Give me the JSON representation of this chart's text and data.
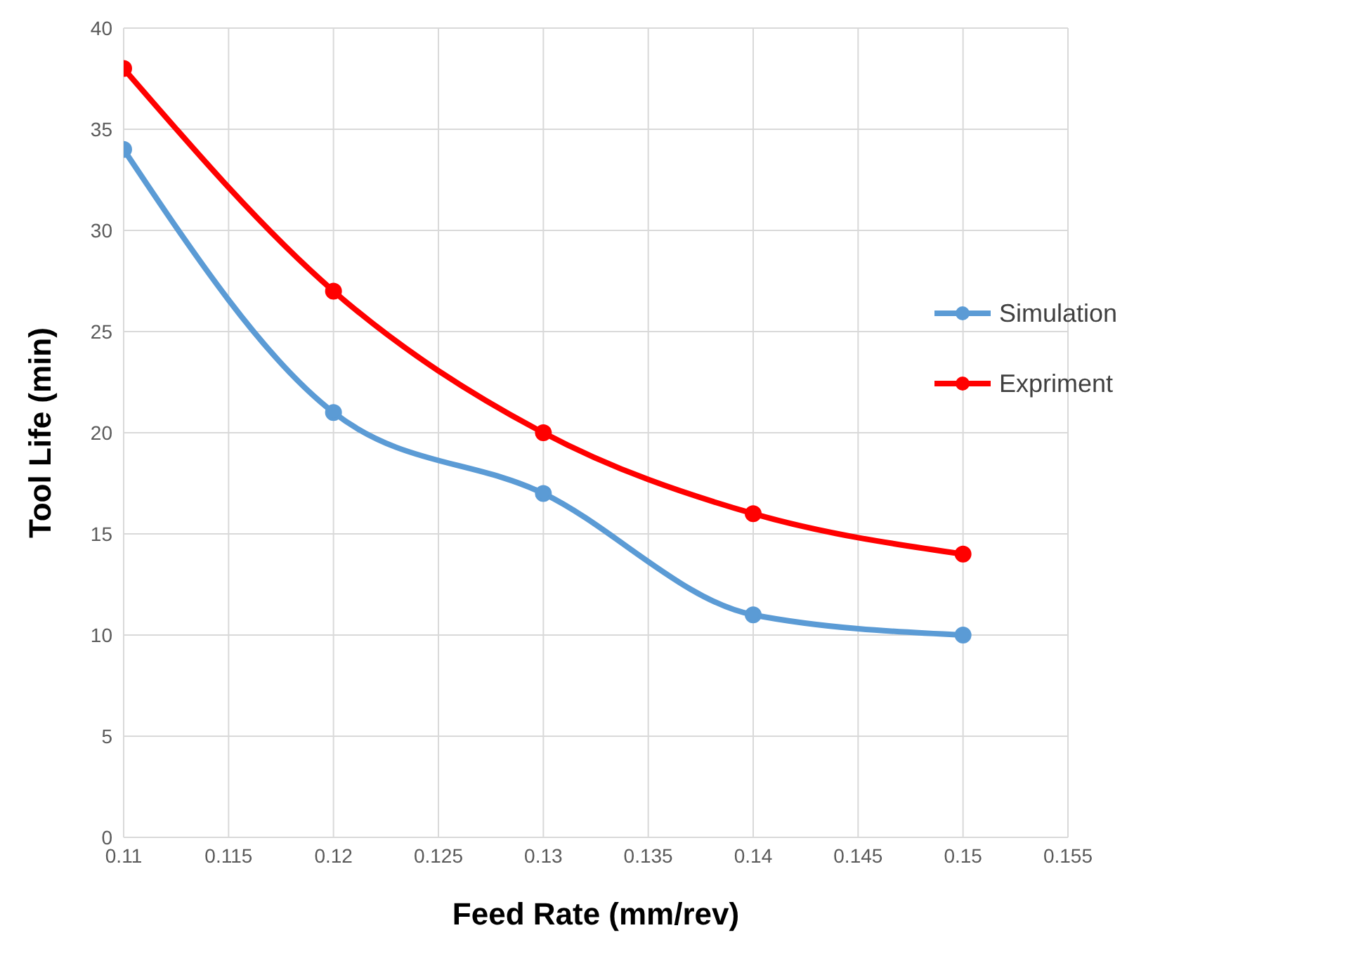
{
  "chart_data": {
    "type": "line",
    "xlabel": "Feed Rate (mm/rev)",
    "ylabel": "Tool Life (min)",
    "x": [
      0.11,
      0.12,
      0.13,
      0.14,
      0.15
    ],
    "series": [
      {
        "name": "Simulation",
        "color": "#5b9bd5",
        "values": [
          34,
          21,
          17,
          11,
          10
        ]
      },
      {
        "name": "Expriment",
        "color": "#ff0000",
        "values": [
          38,
          27,
          20,
          16,
          14
        ]
      }
    ],
    "xlim": [
      0.11,
      0.155
    ],
    "xticks": [
      0.11,
      0.115,
      0.12,
      0.125,
      0.13,
      0.135,
      0.14,
      0.145,
      0.15,
      0.155
    ],
    "ylim": [
      0,
      40
    ],
    "yticks": [
      0,
      5,
      10,
      15,
      20,
      25,
      30,
      35,
      40
    ],
    "grid": true,
    "legend": "top right",
    "marker": "circle",
    "line_style": "solid"
  }
}
